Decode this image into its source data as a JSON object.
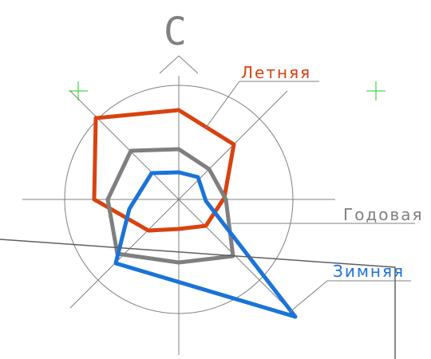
{
  "north_label": "С",
  "labels": {
    "summer": "Летняя",
    "annual": "Годовая",
    "winter": "Зимняя"
  }
}
